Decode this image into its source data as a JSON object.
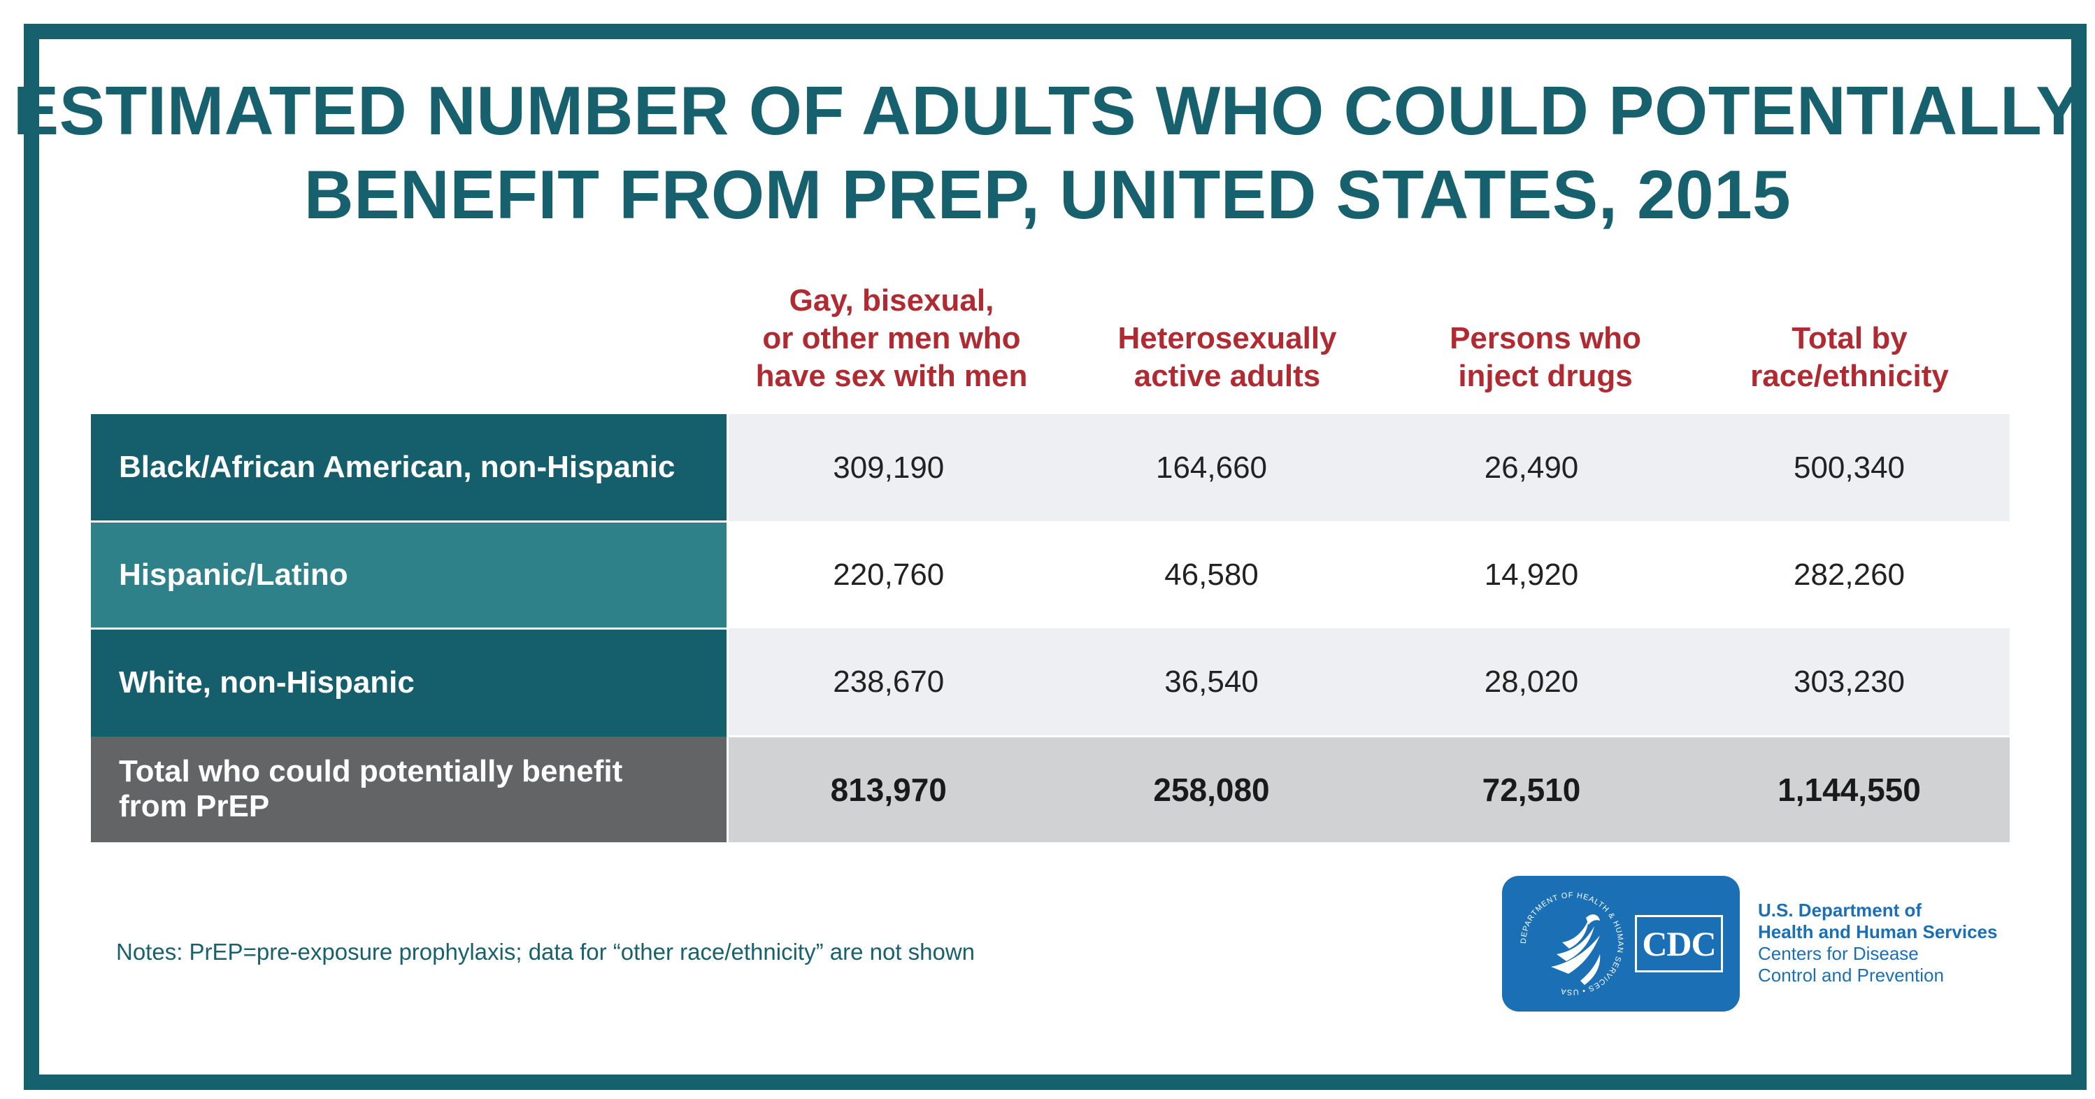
{
  "title": {
    "line1": "ESTIMATED NUMBER OF ADULTS WHO COULD POTENTIALLY",
    "line2": "BENEFIT FROM PREP, UNITED STATES, 2015"
  },
  "chart_data": {
    "type": "table",
    "title": "ESTIMATED NUMBER OF ADULTS WHO COULD POTENTIALLY BENEFIT FROM PREP, UNITED STATES, 2015",
    "columns": [
      "Gay, bisexual,\nor other men who\nhave sex with men",
      "Heterosexually\nactive adults",
      "Persons who\ninject drugs",
      "Total by\nrace/ethnicity"
    ],
    "rows": [
      {
        "label": "Black/African American, non-Hispanic",
        "values": [
          "309,190",
          "164,660",
          "26,490",
          "500,340"
        ]
      },
      {
        "label": "Hispanic/Latino",
        "values": [
          "220,760",
          "46,580",
          "14,920",
          "282,260"
        ]
      },
      {
        "label": "White, non-Hispanic",
        "values": [
          "238,670",
          "36,540",
          "28,020",
          "303,230"
        ]
      }
    ],
    "total": {
      "label": "Total who could potentially benefit\n from PrEP",
      "values": [
        "813,970",
        "258,080",
        "72,510",
        "1,144,550"
      ]
    }
  },
  "notes": "Notes: PrEP=pre-exposure prophylaxis; data for “other race/ethnicity” are not shown",
  "logo": {
    "cdc_text": "CDC",
    "seal_text": "DEPARTMENT OF HEALTH & HUMAN SERVICES • USA"
  },
  "department": {
    "line1": "U.S. Department of",
    "line2": "Health and Human Services",
    "line3": "Centers for Disease",
    "line4": "Control and Prevention"
  },
  "colors": {
    "teal": "#17616e",
    "red": "#b02a32",
    "blue": "#1a6fb5"
  }
}
